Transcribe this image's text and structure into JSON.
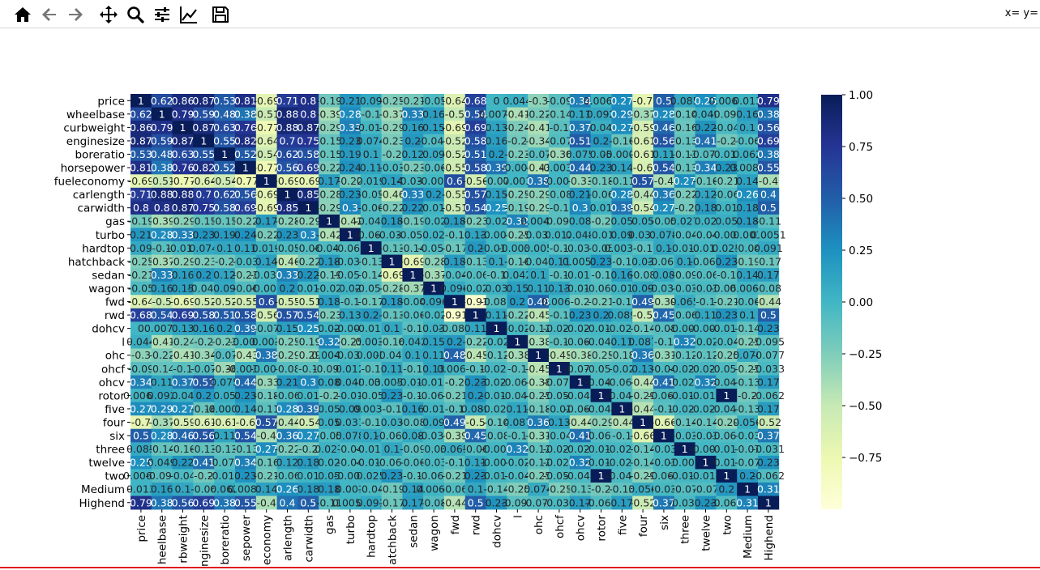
{
  "toolbar": {
    "buttons": [
      {
        "name": "home-icon",
        "tip": "Home"
      },
      {
        "name": "back-arrow-icon",
        "tip": "Back"
      },
      {
        "name": "forward-arrow-icon",
        "tip": "Forward"
      },
      {
        "name": "pan-icon",
        "tip": "Pan"
      },
      {
        "name": "zoom-icon",
        "tip": "Zoom"
      },
      {
        "name": "configure-subplots-icon",
        "tip": "Subplots"
      },
      {
        "name": "edit-axis-icon",
        "tip": "Customize"
      },
      {
        "name": "save-icon",
        "tip": "Save"
      }
    ],
    "coords": "x= y="
  },
  "chart_data": {
    "type": "heatmap",
    "labels": [
      "price",
      "wheelbase",
      "curbweight",
      "enginesize",
      "boreratio",
      "horsepower",
      "fueleconomy",
      "carlength",
      "carwidth",
      "gas",
      "turbo",
      "hardtop",
      "hatchback",
      "sedan",
      "wagon",
      "fwd",
      "rwd",
      "dohcv",
      "l",
      "ohc",
      "ohcf",
      "ohcv",
      "rotor",
      "five",
      "four",
      "six",
      "three",
      "twelve",
      "two",
      "Medium",
      "Highend"
    ],
    "x_tick_labels": [
      "price",
      "heelbase",
      "rbweight",
      "nginesize",
      "boreratio",
      "sepower",
      "economy",
      "arlength",
      "carwidth",
      "gas",
      "turbo",
      "hardtop",
      "atchback",
      "sedan",
      "wagon",
      "fwd",
      "rwd",
      "dohcv",
      "l",
      "ohc",
      "ohcf",
      "ohcv",
      "rotor",
      "five",
      "four",
      "six",
      "three",
      "twelve",
      "two",
      "Medium",
      "Highend"
    ],
    "colorbar": {
      "min": -1,
      "max": 1,
      "ticks": [
        "1.00",
        "0.75",
        "0.50",
        "0.25",
        "0.00",
        "−0.25",
        "−0.50",
        "−0.75"
      ]
    },
    "colorscale": "YlGnBu",
    "values": [
      [
        1,
        0.62,
        0.86,
        0.87,
        0.53,
        0.81,
        -0.69,
        0.71,
        0.8,
        -0.19,
        0.21,
        0.09,
        -0.25,
        -0.21,
        -0.05,
        -0.64,
        0.68,
        0,
        0.044,
        -0.3,
        -0.09,
        0.34,
        0.0069,
        0.27,
        -0.7,
        0.5,
        0.085,
        0.25,
        0.0069,
        0.013,
        0.79
      ],
      [
        0.62,
        1,
        0.79,
        0.59,
        0.48,
        0.38,
        -0.51,
        0.88,
        0.8,
        -0.39,
        0.28,
        -0.1,
        -0.37,
        0.33,
        0.16,
        -0.5,
        0.54,
        0.0071,
        -0.41,
        -0.22,
        -0.14,
        0.11,
        0.092,
        0.29,
        -0.37,
        0.28,
        -0.14,
        0.049,
        -0.092,
        0.16,
        0.38
      ],
      [
        0.86,
        0.79,
        1,
        0.87,
        0.63,
        0.76,
        -0.77,
        0.88,
        0.87,
        -0.29,
        0.33,
        -0.016,
        -0.29,
        0.16,
        0.15,
        -0.69,
        0.69,
        0.13,
        -0.24,
        -0.41,
        -0.1,
        0.37,
        0.04,
        0.27,
        -0.59,
        0.46,
        -0.16,
        0.22,
        -0.04,
        0.1,
        0.56
      ],
      [
        0.87,
        0.59,
        0.87,
        1,
        0.55,
        0.82,
        -0.64,
        0.7,
        0.75,
        -0.15,
        0.23,
        0.074,
        -0.23,
        0.2,
        -0.047,
        -0.52,
        0.58,
        0.16,
        -0.2,
        -0.34,
        -0.07,
        0.51,
        0.2,
        -0.16,
        -0.61,
        0.56,
        -0.13,
        0.41,
        -0.2,
        -0.06,
        0.69
      ],
      [
        0.53,
        0.48,
        0.63,
        0.55,
        1,
        0.52,
        -0.54,
        0.62,
        0.58,
        -0.15,
        0.19,
        0.1,
        -0.2,
        0.12,
        0.09,
        -0.52,
        0.51,
        0.2,
        -0.23,
        -0.07,
        -0.36,
        0.075,
        0.05,
        -0.0004,
        -0.61,
        0.11,
        -0.13,
        -0.075,
        -0.015,
        0.062,
        0.38
      ],
      [
        0.81,
        0.38,
        0.76,
        0.82,
        0.52,
        1,
        -0.77,
        0.56,
        0.69,
        -0.22,
        0.24,
        0.11,
        -0.03,
        -0.23,
        -0.06,
        -0.55,
        0.58,
        0.39,
        -0.009,
        -0.43,
        -0.0034,
        0.44,
        0.23,
        0.14,
        -0.6,
        0.54,
        -0.13,
        0.34,
        0.23,
        0.0088,
        0.55
      ],
      [
        -0.69,
        -0.51,
        -0.77,
        -0.64,
        -0.54,
        -0.77,
        1,
        -0.69,
        -0.69,
        0.17,
        -0.22,
        0.019,
        0.14,
        -0.033,
        -0.008,
        0.6,
        -0.56,
        -0.07,
        0.003,
        0.38,
        -0.007,
        -0.33,
        -0.18,
        -0.11,
        0.57,
        -0.4,
        0.27,
        -0.16,
        -0.21,
        0.14,
        -0.4
      ],
      [
        0.71,
        0.88,
        0.88,
        0.7,
        0.62,
        0.56,
        -0.69,
        1,
        0.85,
        -0.28,
        0.23,
        -0.05,
        -0.46,
        0.33,
        0.2,
        -0.55,
        0.57,
        0.15,
        -0.25,
        -0.29,
        -0.08,
        0.21,
        -0.06,
        0.28,
        -0.44,
        0.36,
        -0.22,
        0.12,
        -0.06,
        0.26,
        0.4
      ],
      [
        0.8,
        0.8,
        0.87,
        0.75,
        0.58,
        0.69,
        -0.69,
        0.85,
        1,
        -0.29,
        0.3,
        -0.06,
        -0.22,
        0.22,
        0.01,
        -0.51,
        0.54,
        0.25,
        -0.19,
        -0.29,
        -0.1,
        0.3,
        0.01,
        0.39,
        -0.54,
        0.27,
        -0.2,
        0.18,
        0.01,
        0.18,
        0.5
      ],
      [
        -0.19,
        -0.39,
        -0.29,
        -0.15,
        -0.15,
        -0.22,
        0.17,
        -0.28,
        -0.29,
        1,
        -0.42,
        -0.046,
        0.18,
        -0.19,
        -0.02,
        0.18,
        -0.23,
        0.02,
        0.32,
        0.0048,
        -0.096,
        0.08,
        -0.2,
        0.05,
        0.05,
        -0.05,
        0.027,
        0.02,
        0.05,
        0.18,
        -0.11
      ],
      [
        0.21,
        0.28,
        0.33,
        0.23,
        0.19,
        0.24,
        -0.22,
        0.23,
        0.3,
        -0.42,
        1,
        -0.061,
        -0.031,
        -0.059,
        0.02,
        -0.1,
        0.13,
        -0.004,
        -0.25,
        -0.032,
        0.012,
        0.048,
        -0.01,
        0.09,
        0.031,
        0.078,
        -0.04,
        -0.04,
        -0.004,
        0.001,
        0.0051
      ],
      [
        0.09,
        -0.1,
        -0.016,
        0.074,
        0.1,
        0.11,
        0.019,
        -0.05,
        -0.06,
        -0.046,
        -0.061,
        1,
        -0.13,
        -0.14,
        -0.057,
        -0.17,
        0.2,
        -0.014,
        -0.0038,
        0.005,
        -0.1,
        -0.038,
        -0.05,
        0.0033,
        -0.1,
        0.1,
        -0.012,
        -0.012,
        0.025,
        -0.04,
        0.091
      ],
      [
        -0.25,
        -0.37,
        -0.29,
        -0.23,
        -0.2,
        -0.03,
        0.14,
        -0.46,
        -0.22,
        0.18,
        -0.031,
        -0.13,
        1,
        -0.69,
        -0.28,
        0.18,
        -0.13,
        0.1,
        -0.16,
        -0.045,
        0.11,
        0.0059,
        0.23,
        -0.1,
        0.03,
        -0.066,
        0.1,
        -0.066,
        0.23,
        -0.19,
        -0.17
      ],
      [
        -0.21,
        0.33,
        0.16,
        0.2,
        0.12,
        -0.23,
        -0.033,
        0.33,
        0.22,
        -0.19,
        -0.059,
        -0.14,
        -0.69,
        1,
        -0.37,
        -0.04,
        -0.06,
        -0.1,
        0.042,
        0.1,
        -0.1,
        -0.016,
        -0.1,
        0.16,
        -0.08,
        0.08,
        -0.09,
        -0.06,
        -0.1,
        0.14,
        0.17
      ],
      [
        -0.05,
        0.16,
        0.15,
        -0.047,
        0.09,
        -0.06,
        -0.008,
        0.2,
        0.01,
        -0.02,
        0.02,
        -0.057,
        -0.28,
        -0.37,
        1,
        0.096,
        -0.02,
        0.03,
        0.15,
        0.11,
        0.13,
        -0.017,
        -0.066,
        0.01,
        0.09,
        -0.032,
        -0.03,
        -0.03,
        -0.066,
        0.0067,
        -0.08
      ],
      [
        -0.64,
        -0.5,
        -0.69,
        -0.52,
        -0.52,
        -0.55,
        0.6,
        -0.55,
        -0.51,
        0.18,
        -0.1,
        -0.17,
        0.18,
        -0.04,
        0.096,
        1,
        -0.91,
        -0.081,
        0.2,
        0.48,
        0.0068,
        -0.2,
        -0.21,
        -0.1,
        0.49,
        -0.39,
        0.065,
        -0.1,
        -0.21,
        -0.06,
        -0.44
      ],
      [
        0.68,
        0.54,
        0.69,
        0.58,
        0.51,
        0.58,
        -0.56,
        0.57,
        0.54,
        -0.23,
        0.13,
        0.2,
        -0.13,
        -0.06,
        -0.02,
        -0.91,
        1,
        0.11,
        -0.22,
        -0.45,
        -0.1,
        0.23,
        0.2,
        0.089,
        -0.5,
        0.45,
        -0.06,
        0.11,
        0.23,
        0.1,
        0.5
      ],
      [
        0,
        0.0071,
        0.13,
        0.16,
        0.2,
        0.39,
        -0.07,
        0.15,
        0.25,
        0.02,
        -0.004,
        -0.014,
        0.1,
        -0.1,
        0.03,
        -0.081,
        0.11,
        1,
        -0.02,
        -0.12,
        -0.025,
        -0.022,
        -0.014,
        -0.029,
        -0.14,
        -0.08,
        -0.007,
        -0.007,
        -0.014,
        -0.14,
        0.23
      ],
      [
        0.044,
        -0.41,
        -0.24,
        -0.2,
        -0.23,
        -0.009,
        0.003,
        -0.25,
        -0.19,
        0.32,
        -0.25,
        -0.0038,
        -0.16,
        0.042,
        0.15,
        0.2,
        -0.22,
        -0.02,
        1,
        -0.38,
        -0.1,
        -0.066,
        -0.044,
        0.11,
        0.087,
        -0.1,
        0.32,
        -0.02,
        -0.04,
        -0.25,
        -0.095
      ],
      [
        -0.3,
        -0.22,
        -0.41,
        -0.34,
        -0.07,
        -0.43,
        0.38,
        -0.29,
        -0.29,
        0.0048,
        -0.032,
        0.005,
        -0.045,
        0.1,
        0.11,
        0.48,
        -0.45,
        -0.12,
        -0.38,
        1,
        -0.45,
        -0.38,
        -0.25,
        -0.18,
        0.36,
        -0.31,
        -0.12,
        -0.12,
        -0.25,
        0.074,
        -0.077
      ],
      [
        -0.09,
        -0.14,
        -0.1,
        -0.07,
        -0.36,
        -0.0034,
        -0.007,
        -0.08,
        -0.1,
        -0.096,
        0.012,
        -0.1,
        0.11,
        -0.1,
        0.13,
        0.0068,
        -0.1,
        -0.025,
        -0.1,
        -0.45,
        1,
        -0.078,
        -0.051,
        -0.02,
        0.13,
        -0.04,
        -0.025,
        -0.025,
        -0.051,
        -0.25,
        -0.033
      ],
      [
        0.34,
        0.11,
        0.37,
        0.51,
        0.075,
        0.44,
        -0.33,
        0.21,
        0.3,
        0.08,
        0.048,
        -0.038,
        0.0059,
        -0.016,
        -0.017,
        -0.2,
        0.23,
        -0.022,
        -0.066,
        -0.38,
        -0.078,
        1,
        -0.044,
        -0.067,
        -0.44,
        0.41,
        -0.021,
        0.32,
        -0.044,
        -0.13,
        0.17
      ],
      [
        0.0069,
        0.092,
        0.04,
        0.2,
        0.05,
        0.23,
        -0.18,
        -0.06,
        0.01,
        -0.2,
        -0.01,
        -0.05,
        0.23,
        -0.1,
        -0.066,
        -0.21,
        0.2,
        -0.014,
        -0.044,
        -0.25,
        -0.051,
        -0.044,
        1,
        -0.044,
        -0.29,
        -0.066,
        -0.014,
        -0.014,
        1,
        -0.2,
        -0.062
      ],
      [
        0.27,
        0.29,
        0.27,
        -0.16,
        -0.0004,
        0.14,
        -0.11,
        0.28,
        0.39,
        0.05,
        0.09,
        0.0033,
        -0.1,
        0.16,
        0.01,
        -0.1,
        0.089,
        -0.029,
        0.11,
        -0.18,
        -0.02,
        -0.067,
        -0.044,
        1,
        -0.44,
        -0.1,
        -0.022,
        -0.022,
        -0.044,
        -0.13,
        0.17
      ],
      [
        -0.7,
        -0.37,
        -0.59,
        -0.61,
        -0.61,
        -0.6,
        0.57,
        -0.44,
        -0.54,
        0.05,
        0.031,
        -0.1,
        0.03,
        -0.08,
        0.09,
        0.49,
        -0.5,
        -0.14,
        0.087,
        0.36,
        0.13,
        -0.44,
        -0.29,
        -0.44,
        1,
        -0.66,
        -0.14,
        -0.14,
        -0.29,
        0.056,
        -0.52
      ],
      [
        0.5,
        0.28,
        0.46,
        0.56,
        0.11,
        0.54,
        -0.4,
        0.36,
        0.27,
        -0.05,
        0.078,
        0.1,
        -0.066,
        0.08,
        -0.032,
        -0.39,
        0.45,
        -0.08,
        -0.1,
        -0.31,
        -0.04,
        0.41,
        -0.066,
        -0.1,
        -0.66,
        1,
        -0.03,
        -0.03,
        -0.066,
        -0.03,
        0.37
      ],
      [
        0.085,
        -0.14,
        -0.16,
        -0.13,
        -0.13,
        -0.13,
        0.27,
        -0.22,
        -0.2,
        0.027,
        -0.04,
        -0.012,
        0.1,
        -0.09,
        -0.03,
        0.065,
        -0.06,
        -0.007,
        0.32,
        -0.12,
        -0.025,
        -0.021,
        -0.014,
        -0.022,
        -0.14,
        -0.03,
        1,
        -0.007,
        -0.014,
        -0.07,
        -0.031
      ],
      [
        0.25,
        0.049,
        0.22,
        0.41,
        -0.075,
        0.34,
        -0.16,
        0.12,
        0.18,
        0.02,
        -0.04,
        -0.012,
        -0.066,
        -0.06,
        -0.03,
        -0.1,
        0.11,
        -0.007,
        -0.02,
        -0.12,
        -0.025,
        0.32,
        -0.014,
        -0.022,
        -0.14,
        -0.03,
        -0.007,
        1,
        -0.014,
        -0.07,
        0.23
      ],
      [
        0.0069,
        -0.092,
        -0.04,
        -0.2,
        -0.015,
        0.23,
        -0.21,
        -0.06,
        0.01,
        0.05,
        -0.004,
        0.025,
        0.23,
        -0.1,
        -0.066,
        -0.21,
        0.23,
        -0.014,
        -0.04,
        -0.25,
        -0.051,
        -0.044,
        1,
        -0.044,
        -0.29,
        -0.066,
        -0.014,
        -0.014,
        1,
        0.2,
        -0.062
      ],
      [
        0.013,
        0.16,
        0.1,
        -0.06,
        0.062,
        0.0088,
        0.14,
        0.26,
        0.18,
        0.18,
        0.001,
        -0.04,
        -0.19,
        0.14,
        0.0067,
        -0.06,
        0.1,
        -0.14,
        -0.25,
        0.074,
        -0.25,
        -0.13,
        -0.2,
        -0.13,
        0.056,
        -0.03,
        -0.07,
        -0.07,
        0.2,
        1,
        0.31
      ],
      [
        0.79,
        0.38,
        0.56,
        0.69,
        0.38,
        0.55,
        -0.4,
        0.4,
        0.5,
        -0.11,
        0.0051,
        0.091,
        -0.17,
        0.17,
        -0.08,
        -0.44,
        0.5,
        0.23,
        -0.095,
        -0.077,
        -0.033,
        0.17,
        -0.062,
        0.17,
        -0.52,
        0.37,
        -0.031,
        0.23,
        -0.062,
        0.31,
        1
      ]
    ]
  }
}
